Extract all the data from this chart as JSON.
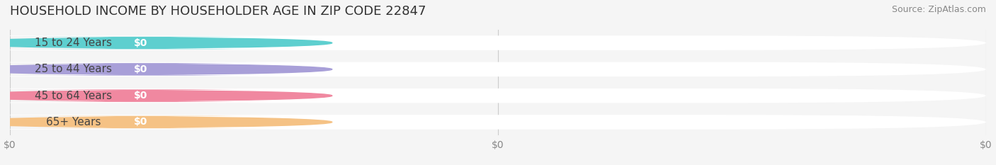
{
  "title": "HOUSEHOLD INCOME BY HOUSEHOLDER AGE IN ZIP CODE 22847",
  "source": "Source: ZipAtlas.com",
  "categories": [
    "15 to 24 Years",
    "25 to 44 Years",
    "45 to 64 Years",
    "65+ Years"
  ],
  "values": [
    0,
    0,
    0,
    0
  ],
  "bar_colors": [
    "#5ecfcf",
    "#a89fd8",
    "#f088a0",
    "#f5c285"
  ],
  "label_bg_colors": [
    "#e8f8f8",
    "#eeeaf8",
    "#fce8ee",
    "#fdf0e0"
  ],
  "xlabel_ticks": [
    "$0",
    "$0",
    "$0"
  ],
  "background_color": "#f5f5f5",
  "bar_bg_color": "#ebebeb",
  "xlim": [
    0,
    1
  ],
  "title_fontsize": 13,
  "source_fontsize": 9,
  "label_fontsize": 11,
  "value_fontsize": 10
}
